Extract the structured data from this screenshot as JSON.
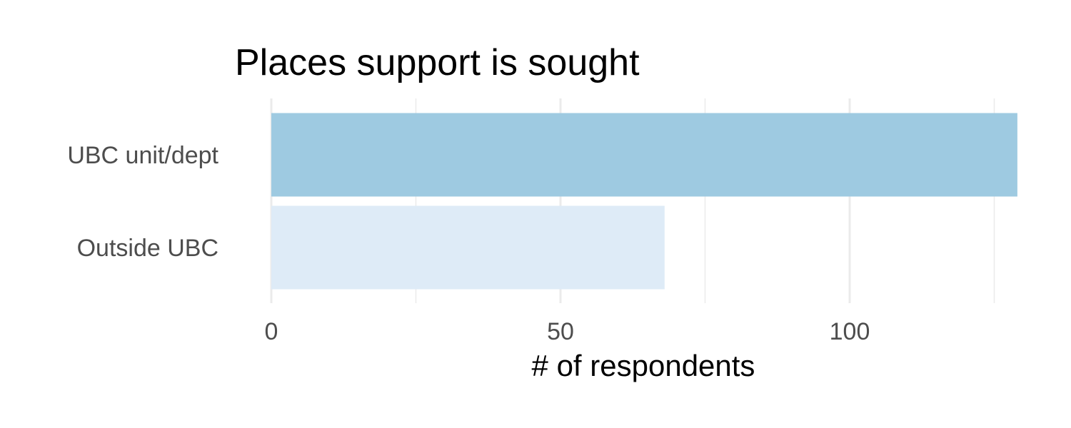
{
  "chart_data": {
    "type": "bar",
    "orientation": "horizontal",
    "title": "Places support is sought",
    "xlabel": "# of respondents",
    "ylabel": "",
    "categories": [
      "UBC unit/dept",
      "Outside UBC"
    ],
    "values": [
      129,
      68
    ],
    "bar_colors": [
      "#9ecae1",
      "#deebf7"
    ],
    "xlim": [
      0,
      129
    ],
    "x_ticks": [
      0,
      50,
      100
    ],
    "x_minor_ticks": [
      25,
      75,
      125
    ],
    "grid": true,
    "legend": "none"
  }
}
